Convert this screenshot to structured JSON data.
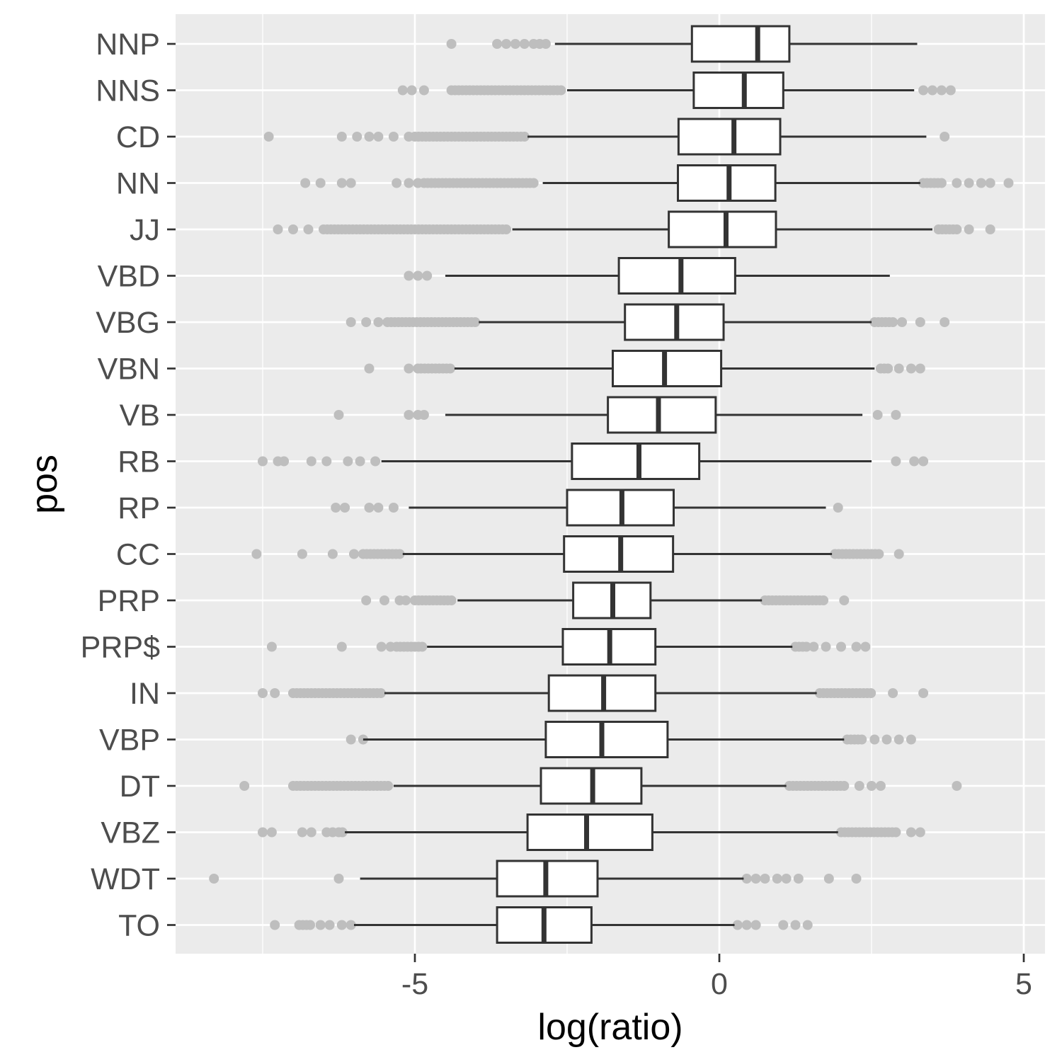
{
  "chart_data": {
    "type": "boxplot",
    "orientation": "horizontal",
    "xlabel": "log(ratio)",
    "ylabel": "pos",
    "xlim": [
      -8.9,
      5.4
    ],
    "xticks": [
      -5,
      0,
      5
    ],
    "xtick_labels": [
      "-5",
      "0",
      "5"
    ],
    "grid": true,
    "legend": "none",
    "colors": {
      "panel": "#ebebeb",
      "grid": "#ffffff",
      "box_fill": "#ffffff",
      "box_line": "#333333",
      "outlier": "#bebebe"
    },
    "categories": [
      "NNP",
      "NNS",
      "CD",
      "NN",
      "JJ",
      "VBD",
      "VBG",
      "VBN",
      "VB",
      "RB",
      "RP",
      "CC",
      "PRP",
      "PRP$",
      "IN",
      "VBP",
      "DT",
      "VBZ",
      "WDT",
      "TO"
    ],
    "boxes": [
      {
        "label": "NNP",
        "whisker_low": -2.7,
        "q1": -0.45,
        "median": 0.63,
        "q3": 1.15,
        "whisker_high": 3.25,
        "outliers_low": [
          -4.4,
          -3.65,
          -3.5,
          -3.35,
          -3.2,
          -3.05,
          -2.95,
          -2.85
        ],
        "outliers_high": [],
        "dense_low": [],
        "dense_high": []
      },
      {
        "label": "NNS",
        "whisker_low": -2.5,
        "q1": -0.42,
        "median": 0.41,
        "q3": 1.05,
        "whisker_high": 3.2,
        "outliers_low": [
          -5.2,
          -5.05,
          -4.85
        ],
        "outliers_high": [
          3.35,
          3.5,
          3.65,
          3.8
        ],
        "dense_low": [
          -4.4,
          -2.6
        ],
        "dense_high": []
      },
      {
        "label": "CD",
        "whisker_low": -3.15,
        "q1": -0.67,
        "median": 0.24,
        "q3": 1.0,
        "whisker_high": 3.4,
        "outliers_low": [
          -7.4,
          -6.2,
          -5.95,
          -5.75,
          -5.6,
          -5.35,
          -5.1
        ],
        "outliers_high": [
          3.7
        ],
        "dense_low": [
          -5.0,
          -3.2
        ],
        "dense_high": []
      },
      {
        "label": "NN",
        "whisker_low": -2.9,
        "q1": -0.68,
        "median": 0.16,
        "q3": 0.92,
        "whisker_high": 3.3,
        "outliers_low": [
          -6.8,
          -6.55,
          -6.2,
          -6.05,
          -5.3,
          -5.1,
          -4.95
        ],
        "outliers_high": [
          3.9,
          4.1,
          4.3,
          4.45,
          4.75
        ],
        "dense_low": [
          -4.85,
          -3.0
        ],
        "dense_high": [
          3.35,
          3.7
        ]
      },
      {
        "label": "JJ",
        "whisker_low": -3.4,
        "q1": -0.83,
        "median": 0.11,
        "q3": 0.93,
        "whisker_high": 3.5,
        "outliers_low": [
          -7.25,
          -7.0,
          -6.75
        ],
        "outliers_high": [
          4.1,
          4.45
        ],
        "dense_low": [
          -6.5,
          -3.5
        ],
        "dense_high": [
          3.6,
          3.95
        ]
      },
      {
        "label": "VBD",
        "whisker_low": -4.5,
        "q1": -1.65,
        "median": -0.63,
        "q3": 0.26,
        "whisker_high": 2.8,
        "outliers_low": [
          -5.1,
          -4.95,
          -4.8
        ],
        "outliers_high": [],
        "dense_low": [],
        "dense_high": []
      },
      {
        "label": "VBG",
        "whisker_low": -3.95,
        "q1": -1.55,
        "median": -0.7,
        "q3": 0.07,
        "whisker_high": 2.5,
        "outliers_low": [
          -6.05,
          -5.8,
          -5.6
        ],
        "outliers_high": [
          3.0,
          3.3,
          3.7
        ],
        "dense_low": [
          -5.45,
          -4.0
        ],
        "dense_high": [
          2.55,
          2.85
        ]
      },
      {
        "label": "VBN",
        "whisker_low": -4.35,
        "q1": -1.75,
        "median": -0.9,
        "q3": 0.03,
        "whisker_high": 2.55,
        "outliers_low": [
          -5.75,
          -5.1,
          -4.95
        ],
        "outliers_high": [
          2.95,
          3.15,
          3.3
        ],
        "dense_low": [
          -4.9,
          -4.4
        ],
        "dense_high": [
          2.65,
          2.8
        ]
      },
      {
        "label": "VB",
        "whisker_low": -4.5,
        "q1": -1.83,
        "median": -1.0,
        "q3": -0.06,
        "whisker_high": 2.35,
        "outliers_low": [
          -6.25,
          -5.1,
          -4.95,
          -4.85
        ],
        "outliers_high": [
          2.6,
          2.9
        ],
        "dense_low": [],
        "dense_high": []
      },
      {
        "label": "RB",
        "whisker_low": -5.55,
        "q1": -2.42,
        "median": -1.32,
        "q3": -0.33,
        "whisker_high": 2.5,
        "outliers_low": [
          -7.5,
          -7.25,
          -7.15,
          -6.7,
          -6.45,
          -6.1,
          -5.9,
          -5.65
        ],
        "outliers_high": [
          2.9,
          3.2,
          3.35
        ],
        "dense_low": [],
        "dense_high": []
      },
      {
        "label": "RP",
        "whisker_low": -5.1,
        "q1": -2.5,
        "median": -1.6,
        "q3": -0.75,
        "whisker_high": 1.75,
        "outliers_low": [
          -6.3,
          -6.15,
          -5.75,
          -5.6,
          -5.35
        ],
        "outliers_high": [
          1.95
        ],
        "dense_low": [],
        "dense_high": []
      },
      {
        "label": "CC",
        "whisker_low": -5.2,
        "q1": -2.55,
        "median": -1.62,
        "q3": -0.76,
        "whisker_high": 1.85,
        "outliers_low": [
          -7.6,
          -6.85,
          -6.35,
          -6.0
        ],
        "outliers_high": [
          2.95
        ],
        "dense_low": [
          -5.85,
          -5.2
        ],
        "dense_high": [
          1.9,
          2.65
        ]
      },
      {
        "label": "PRP",
        "whisker_low": -4.3,
        "q1": -2.4,
        "median": -1.75,
        "q3": -1.13,
        "whisker_high": 0.7,
        "outliers_low": [
          -5.8,
          -5.5,
          -5.25,
          -5.15
        ],
        "outliers_high": [
          2.05
        ],
        "dense_low": [
          -5.0,
          -4.35
        ],
        "dense_high": [
          0.75,
          1.75
        ]
      },
      {
        "label": "PRP$",
        "whisker_low": -4.8,
        "q1": -2.57,
        "median": -1.8,
        "q3": -1.05,
        "whisker_high": 1.2,
        "outliers_low": [
          -7.35,
          -6.2,
          -5.55,
          -5.4
        ],
        "outliers_high": [
          1.55,
          1.75,
          2.0,
          2.25,
          2.4
        ],
        "dense_low": [
          -5.3,
          -4.85
        ],
        "dense_high": [
          1.25,
          1.45
        ]
      },
      {
        "label": "IN",
        "whisker_low": -5.5,
        "q1": -2.8,
        "median": -1.9,
        "q3": -1.05,
        "whisker_high": 1.6,
        "outliers_low": [
          -7.5,
          -7.3
        ],
        "outliers_high": [
          2.85,
          3.35
        ],
        "dense_low": [
          -7.0,
          -5.55
        ],
        "dense_high": [
          1.65,
          2.5
        ]
      },
      {
        "label": "VBP",
        "whisker_low": -5.85,
        "q1": -2.85,
        "median": -1.93,
        "q3": -0.85,
        "whisker_high": 2.05,
        "outliers_low": [
          -6.05,
          -5.85
        ],
        "outliers_high": [
          2.55,
          2.75,
          2.95,
          3.15
        ],
        "dense_low": [],
        "dense_high": [
          2.1,
          2.35
        ]
      },
      {
        "label": "DT",
        "whisker_low": -5.35,
        "q1": -2.93,
        "median": -2.08,
        "q3": -1.28,
        "whisker_high": 1.1,
        "outliers_low": [
          -7.8
        ],
        "outliers_high": [
          2.3,
          2.5,
          2.65,
          3.9
        ],
        "dense_low": [
          -7.0,
          -5.4
        ],
        "dense_high": [
          1.15,
          2.05
        ]
      },
      {
        "label": "VBZ",
        "whisker_low": -6.15,
        "q1": -3.15,
        "median": -2.18,
        "q3": -1.1,
        "whisker_high": 1.95,
        "outliers_low": [
          -7.5,
          -7.35,
          -6.85,
          -6.7,
          -6.45,
          -6.35
        ],
        "outliers_high": [
          3.15,
          3.3
        ],
        "dense_low": [
          -6.25,
          -6.15
        ],
        "dense_high": [
          2.0,
          2.9
        ]
      },
      {
        "label": "WDT",
        "whisker_low": -5.9,
        "q1": -3.65,
        "median": -2.85,
        "q3": -2.0,
        "whisker_high": 0.4,
        "outliers_low": [
          -8.3,
          -6.25
        ],
        "outliers_high": [
          0.45,
          0.6,
          0.75,
          0.95,
          1.1,
          1.3,
          1.8,
          2.25
        ],
        "dense_low": [],
        "dense_high": []
      },
      {
        "label": "TO",
        "whisker_low": -6.0,
        "q1": -3.65,
        "median": -2.88,
        "q3": -2.1,
        "whisker_high": 0.25,
        "outliers_low": [
          -7.3,
          -6.55,
          -6.4,
          -6.2,
          -6.05
        ],
        "outliers_high": [
          0.3,
          0.45,
          0.6,
          1.05,
          1.25,
          1.45
        ],
        "dense_low": [
          -6.9,
          -6.7
        ],
        "dense_high": []
      }
    ]
  }
}
